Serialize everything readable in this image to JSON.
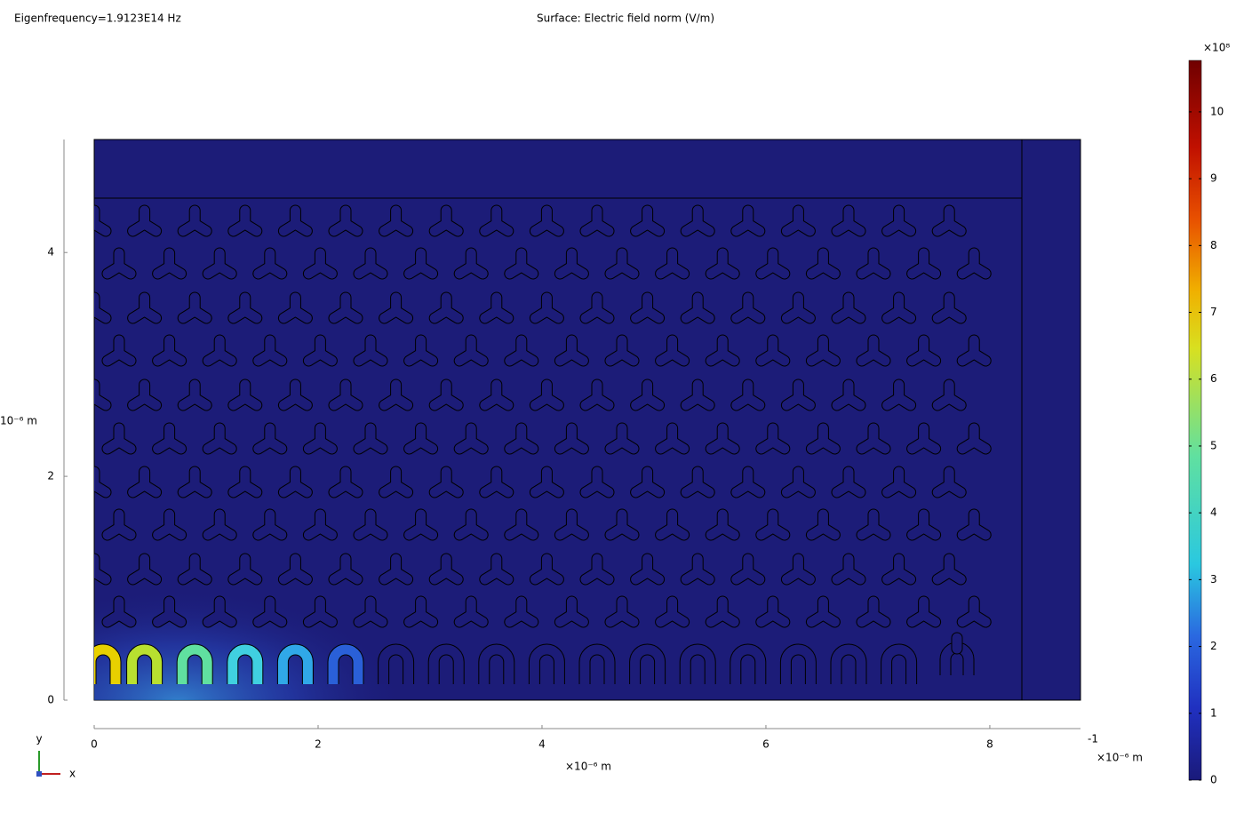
{
  "chart_data": {
    "type": "surface",
    "subtitle": "Eigenfrequency=1.9123E14 Hz",
    "title": "Surface: Electric field norm (V/m)",
    "xlabel": "×10⁻⁶ m",
    "x_unit_right": "×10⁻⁶ m",
    "x_extra_label": "-1",
    "ylabel": "10⁻⁶ m",
    "xlim": [
      0,
      8.81
    ],
    "ylim": [
      0,
      5.01
    ],
    "xticks": [
      0,
      2,
      4,
      6,
      8
    ],
    "yticks": [
      0,
      2,
      4
    ],
    "colorbar": {
      "label": "×10⁸",
      "lim": [
        0,
        10.77
      ],
      "ticks": [
        0,
        1,
        2,
        3,
        4,
        5,
        6,
        7,
        8,
        9,
        10
      ]
    },
    "triad": {
      "y": "y",
      "x": "x"
    }
  }
}
